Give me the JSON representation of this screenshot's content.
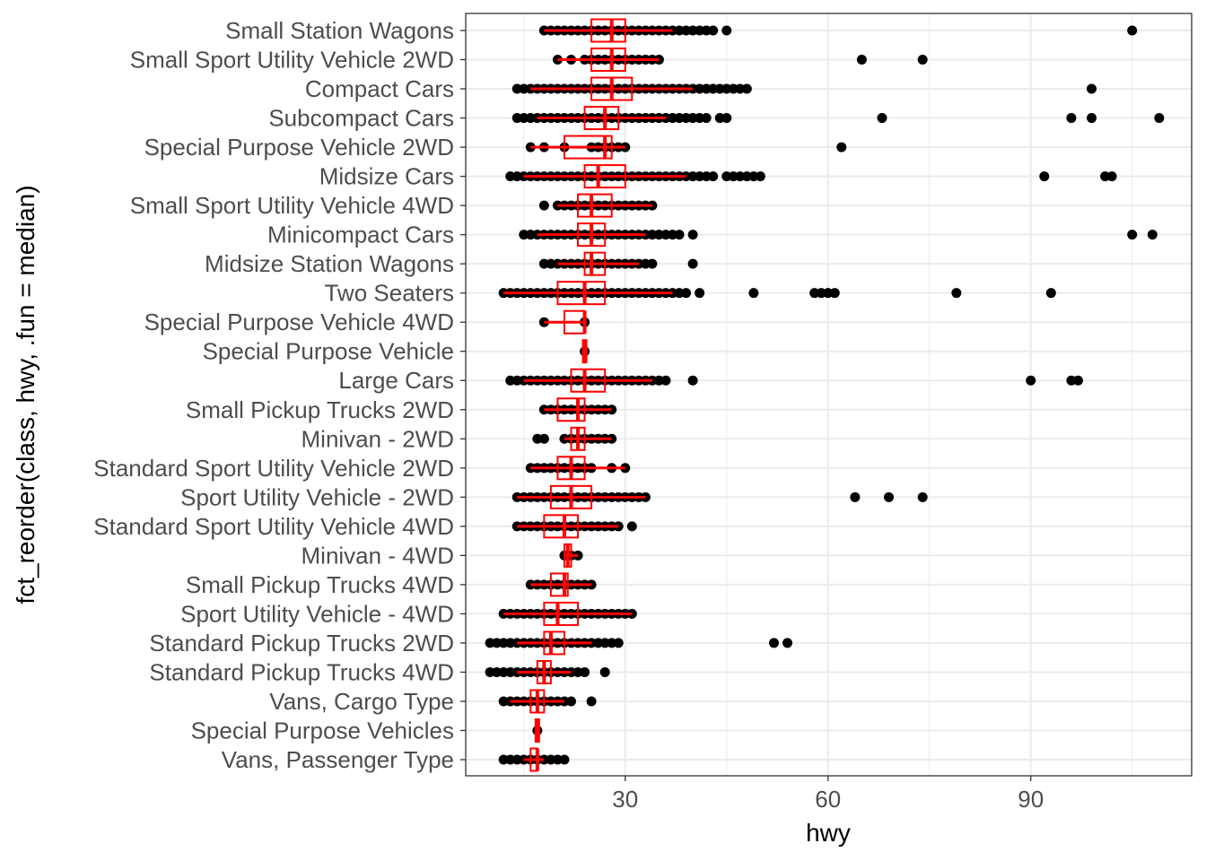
{
  "chart_data": {
    "type": "boxplot",
    "xlabel": "hwy",
    "ylabel": "fct_reorder(class, hwy, .fun = median)",
    "xlim": [
      6.4,
      113.8
    ],
    "xticks": [
      30,
      60,
      90
    ],
    "grid": true,
    "colors": {
      "box": "#ff0000",
      "points": "#000000",
      "grid": "#ebebeb",
      "panel_border": "#333333"
    },
    "categories": [
      {
        "name": "Small Station Wagons",
        "q1": 25,
        "median": 28,
        "q3": 30,
        "wlo": 18,
        "whi": 37,
        "range": [
          18,
          43
        ],
        "extra": [
          45,
          105
        ]
      },
      {
        "name": "Small Sport Utility Vehicle 2WD",
        "q1": 25,
        "median": 28,
        "q3": 30,
        "wlo": 20,
        "whi": 35,
        "range": [
          24,
          35
        ],
        "extra": [
          20,
          22,
          65,
          74
        ]
      },
      {
        "name": "Compact Cars",
        "q1": 25,
        "median": 28,
        "q3": 31,
        "wlo": 16,
        "whi": 40,
        "range": [
          14,
          48
        ],
        "extra": [
          99
        ]
      },
      {
        "name": "Subcompact Cars",
        "q1": 24,
        "median": 27,
        "q3": 29,
        "wlo": 17,
        "whi": 36,
        "range": [
          14,
          42
        ],
        "extra": [
          44,
          45,
          68,
          96,
          99,
          109
        ]
      },
      {
        "name": "Special Purpose Vehicle 2WD",
        "q1": 21,
        "median": 27,
        "q3": 28,
        "wlo": 16,
        "whi": 30,
        "range": [
          25,
          30
        ],
        "extra": [
          16,
          18,
          21,
          62
        ]
      },
      {
        "name": "Midsize Cars",
        "q1": 24,
        "median": 26,
        "q3": 30,
        "wlo": 15,
        "whi": 39,
        "range": [
          13,
          43
        ],
        "extra": [
          45,
          46,
          47,
          48,
          49,
          50,
          92,
          101,
          102
        ]
      },
      {
        "name": "Small Sport Utility Vehicle 4WD",
        "q1": 23,
        "median": 25,
        "q3": 28,
        "wlo": 20,
        "whi": 34,
        "range": [
          20,
          34
        ],
        "extra": [
          18
        ]
      },
      {
        "name": "Minicompact Cars",
        "q1": 23,
        "median": 25,
        "q3": 27,
        "wlo": 17,
        "whi": 33,
        "range": [
          15,
          38
        ],
        "extra": [
          40,
          105,
          108
        ]
      },
      {
        "name": "Midsize Station Wagons",
        "q1": 24,
        "median": 25,
        "q3": 27,
        "wlo": 20,
        "whi": 32,
        "range": [
          18,
          34
        ],
        "extra": [
          40
        ]
      },
      {
        "name": "Two Seaters",
        "q1": 20,
        "median": 24,
        "q3": 27,
        "wlo": 12,
        "whi": 37,
        "range": [
          12,
          39
        ],
        "extra": [
          41,
          49,
          58,
          59,
          60,
          61,
          79,
          93
        ]
      },
      {
        "name": "Special Purpose Vehicle 4WD",
        "q1": 21,
        "median": 24,
        "q3": 24,
        "wlo": 18,
        "whi": 24,
        "range": [
          24,
          24
        ],
        "extra": [
          18
        ]
      },
      {
        "name": "Special Purpose Vehicle",
        "q1": 24,
        "median": 24,
        "q3": 24,
        "wlo": 24,
        "whi": 24,
        "range": [
          24,
          24
        ],
        "extra": []
      },
      {
        "name": "Large Cars",
        "q1": 22,
        "median": 24,
        "q3": 27,
        "wlo": 15,
        "whi": 34,
        "range": [
          13,
          36
        ],
        "extra": [
          40,
          90,
          96,
          97
        ]
      },
      {
        "name": "Small Pickup Trucks 2WD",
        "q1": 20,
        "median": 23,
        "q3": 24,
        "wlo": 18,
        "whi": 28,
        "range": [
          18,
          28
        ],
        "extra": []
      },
      {
        "name": "Minivan - 2WD",
        "q1": 22,
        "median": 23,
        "q3": 24,
        "wlo": 21,
        "whi": 28,
        "range": [
          21,
          28
        ],
        "extra": [
          17,
          18
        ]
      },
      {
        "name": "Standard Sport Utility Vehicle 2WD",
        "q1": 20,
        "median": 22,
        "q3": 24,
        "wlo": 16,
        "whi": 30,
        "range": [
          16,
          25
        ],
        "extra": [
          28,
          30
        ]
      },
      {
        "name": "Sport Utility Vehicle - 2WD",
        "q1": 19,
        "median": 22,
        "q3": 25,
        "wlo": 14,
        "whi": 33,
        "range": [
          14,
          33
        ],
        "extra": [
          64,
          69,
          74
        ]
      },
      {
        "name": "Standard Sport Utility Vehicle 4WD",
        "q1": 18,
        "median": 21,
        "q3": 23,
        "wlo": 14,
        "whi": 29,
        "range": [
          14,
          29
        ],
        "extra": [
          31
        ]
      },
      {
        "name": "Minivan - 4WD",
        "q1": 21,
        "median": 21.5,
        "q3": 22,
        "wlo": 21,
        "whi": 23,
        "range": [
          21,
          23
        ],
        "extra": []
      },
      {
        "name": "Small Pickup Trucks 4WD",
        "q1": 19,
        "median": 21,
        "q3": 21.5,
        "wlo": 16,
        "whi": 25,
        "range": [
          16,
          25
        ],
        "extra": []
      },
      {
        "name": "Sport Utility Vehicle - 4WD",
        "q1": 18,
        "median": 20,
        "q3": 23,
        "wlo": 12,
        "whi": 31,
        "range": [
          12,
          31
        ],
        "extra": []
      },
      {
        "name": "Standard Pickup Trucks 2WD",
        "q1": 18,
        "median": 19,
        "q3": 21,
        "wlo": 14,
        "whi": 25,
        "range": [
          10,
          29
        ],
        "extra": [
          52,
          54
        ]
      },
      {
        "name": "Standard Pickup Trucks 4WD",
        "q1": 17,
        "median": 18,
        "q3": 19,
        "wlo": 14,
        "whi": 22,
        "range": [
          10,
          24
        ],
        "extra": [
          27
        ]
      },
      {
        "name": "Vans, Cargo Type",
        "q1": 16,
        "median": 17,
        "q3": 18,
        "wlo": 13,
        "whi": 21,
        "range": [
          12,
          22
        ],
        "extra": [
          25
        ]
      },
      {
        "name": "Special Purpose Vehicles",
        "q1": 17,
        "median": 17,
        "q3": 17,
        "wlo": 17,
        "whi": 17,
        "range": [
          17,
          17
        ],
        "extra": []
      },
      {
        "name": "Vans, Passenger Type",
        "q1": 16,
        "median": 17,
        "q3": 17,
        "wlo": 15,
        "whi": 18,
        "range": [
          12,
          21
        ],
        "extra": []
      }
    ]
  }
}
